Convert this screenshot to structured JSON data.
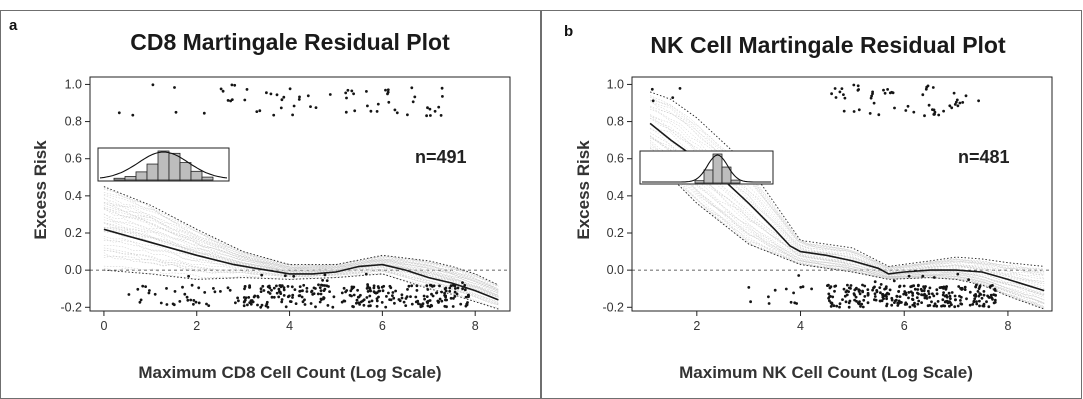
{
  "chart_data": [
    {
      "panel_letter": "a",
      "title": "CD8 Martingale Residual Plot",
      "type": "scatter",
      "xlabel": "Maximum CD8 Cell Count (Log Scale)",
      "ylabel": "Excess Risk",
      "xlim": [
        -0.3,
        8.75
      ],
      "ylim": [
        -0.22,
        1.04
      ],
      "xticks": [
        0,
        2,
        4,
        6,
        8
      ],
      "yticks": [
        -0.2,
        0.0,
        0.2,
        0.4,
        0.6,
        0.8,
        1.0
      ],
      "ytick_labels": [
        "-0.2",
        "0.0",
        "0.2",
        "0.4",
        "0.6",
        "0.8",
        "1.0"
      ],
      "n_label": "n=491",
      "smooth_line": {
        "x": [
          0,
          1,
          2,
          2.8,
          3.5,
          4.0,
          4.5,
          5.0,
          5.5,
          6.0,
          6.5,
          7.0,
          7.5,
          8.0,
          8.5
        ],
        "y": [
          0.22,
          0.15,
          0.08,
          0.03,
          0.0,
          -0.02,
          -0.02,
          -0.01,
          0.02,
          0.03,
          0.0,
          -0.04,
          -0.07,
          -0.11,
          -0.16
        ]
      },
      "ci_upper": {
        "x": [
          0,
          1,
          2,
          3,
          4,
          5,
          6,
          7,
          7.5,
          8,
          8.5
        ],
        "y": [
          0.45,
          0.35,
          0.22,
          0.1,
          0.03,
          0.03,
          0.08,
          0.05,
          0.02,
          -0.02,
          -0.08
        ]
      },
      "ci_lower": {
        "x": [
          0,
          1,
          2,
          3,
          4,
          5,
          6,
          7,
          7.5,
          8,
          8.5
        ],
        "y": [
          0.0,
          -0.02,
          -0.05,
          -0.04,
          -0.05,
          -0.04,
          -0.02,
          -0.1,
          -0.13,
          -0.17,
          -0.21
        ]
      },
      "inset_histogram": {
        "bins": [
          "b1",
          "b2",
          "b3",
          "b4",
          "b5",
          "b6",
          "b7",
          "b8",
          "b9"
        ],
        "heights": [
          0.06,
          0.12,
          0.28,
          0.55,
          1.0,
          0.92,
          0.6,
          0.3,
          0.1
        ]
      }
    },
    {
      "panel_letter": "b",
      "title": "NK Cell Martingale Residual Plot",
      "type": "scatter",
      "xlabel": "Maximum NK Cell Count (Log Scale)",
      "ylabel": "Excess Risk",
      "xlim": [
        0.75,
        8.85
      ],
      "ylim": [
        -0.22,
        1.04
      ],
      "xticks": [
        2,
        4,
        6,
        8
      ],
      "yticks": [
        -0.2,
        0.0,
        0.2,
        0.4,
        0.6,
        0.8,
        1.0
      ],
      "ytick_labels": [
        "-0.2",
        "0.0",
        "0.2",
        "0.4",
        "0.6",
        "0.8",
        "1.0"
      ],
      "n_label": "n=481",
      "smooth_line": {
        "x": [
          1.1,
          1.5,
          2.0,
          2.5,
          3.0,
          3.5,
          3.8,
          4.0,
          4.5,
          5.0,
          5.5,
          5.7,
          6.0,
          6.5,
          7.0,
          7.5,
          8.0,
          8.7
        ],
        "y": [
          0.79,
          0.7,
          0.6,
          0.49,
          0.36,
          0.22,
          0.13,
          0.1,
          0.08,
          0.05,
          0.01,
          -0.02,
          -0.01,
          0.0,
          0.0,
          -0.01,
          -0.05,
          -0.11
        ]
      },
      "ci_upper": {
        "x": [
          1.1,
          1.5,
          2.0,
          3.0,
          4.0,
          5.0,
          5.7,
          6.5,
          7.0,
          7.5,
          8.0,
          8.7
        ],
        "y": [
          0.96,
          0.92,
          0.82,
          0.56,
          0.16,
          0.12,
          0.02,
          0.05,
          0.07,
          0.06,
          0.04,
          0.02
        ]
      },
      "ci_lower": {
        "x": [
          1.1,
          1.5,
          2.0,
          3.0,
          4.0,
          5.0,
          5.7,
          6.5,
          7.0,
          7.5,
          8.0,
          8.7
        ],
        "y": [
          0.6,
          0.5,
          0.36,
          0.14,
          0.03,
          -0.01,
          -0.05,
          -0.04,
          -0.05,
          -0.08,
          -0.14,
          -0.21
        ]
      },
      "inset_histogram": {
        "bins": [
          "b1",
          "b2",
          "b3",
          "b4",
          "b5"
        ],
        "heights": [
          0.08,
          0.45,
          1.0,
          0.55,
          0.1
        ]
      }
    }
  ]
}
